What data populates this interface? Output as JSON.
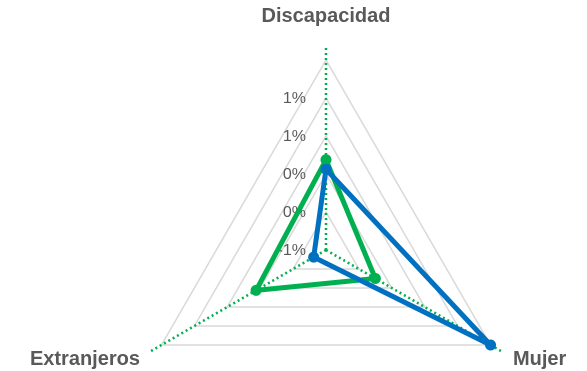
{
  "chart_data": {
    "type": "radar",
    "axes": [
      "Discapacidad",
      "Mujer",
      "Extranjeros"
    ],
    "tick_labels": [
      "-1%",
      "0%",
      "0%",
      "1%",
      "1%"
    ],
    "range": [
      -0.6,
      1.4
    ],
    "grid": true,
    "series": [
      {
        "color": "#00B050",
        "values": [
          0.35,
          0.0,
          0.25
        ]
      },
      {
        "color": "#0070C0",
        "values": [
          0.25,
          1.4,
          -0.45
        ]
      }
    ]
  },
  "colors": {
    "grid": "#d9d9d9",
    "axis_line": "#00B050"
  }
}
